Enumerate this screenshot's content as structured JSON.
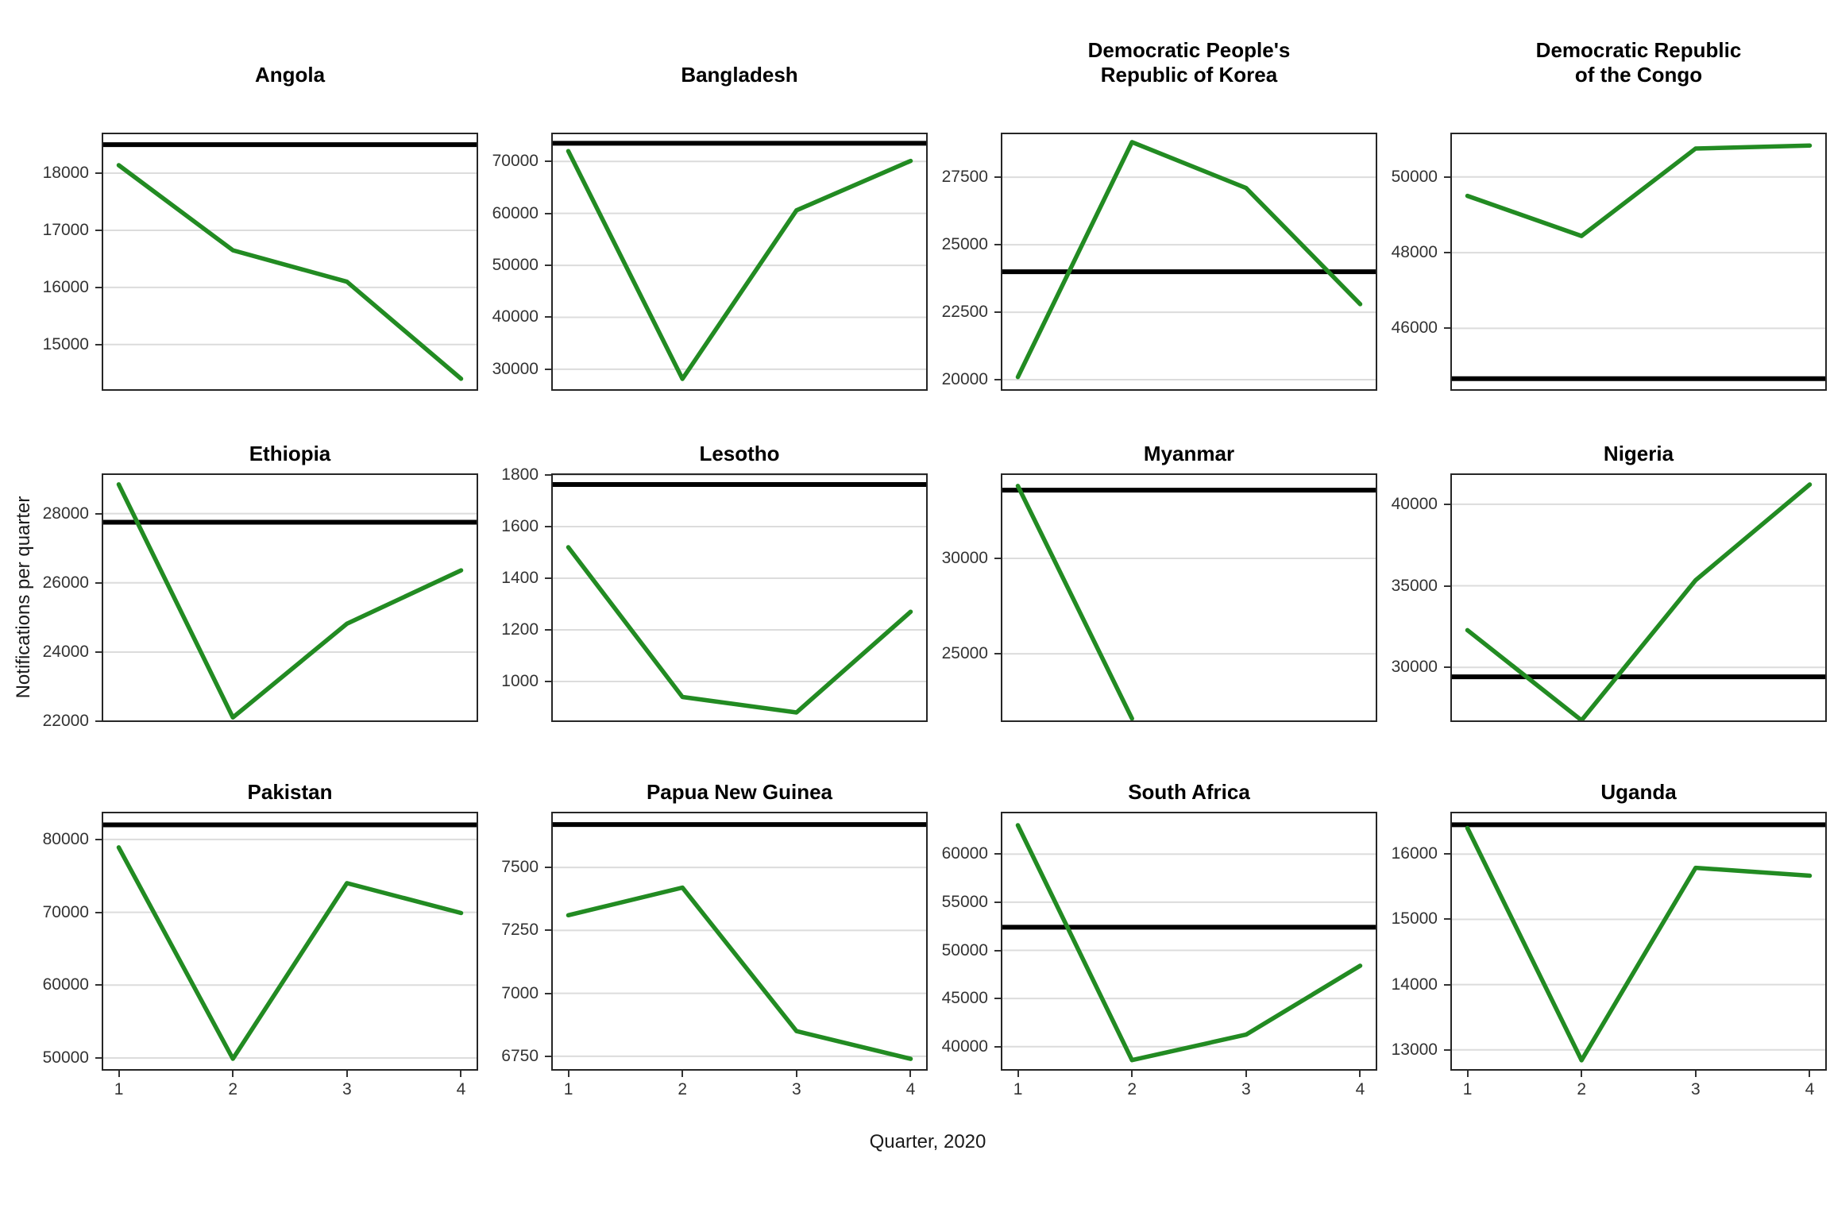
{
  "chart_data": {
    "type": "line",
    "title": "",
    "xlabel": "Quarter, 2020",
    "ylabel": "Notifications per quarter",
    "x": [
      1,
      2,
      3,
      4
    ],
    "x_ticks": [
      "1",
      "2",
      "3",
      "4"
    ],
    "xlim": [
      0.85,
      4.15
    ],
    "grid": true,
    "legend_position": "none",
    "line_color": "#228B22",
    "reference_line_color": "#000000",
    "gridline_color": "#dcdcdc",
    "facets": [
      {
        "name": "Angola",
        "values": [
          18140,
          16650,
          16100,
          14400
        ],
        "reference": 18500,
        "y_ticks": [
          15000,
          16000,
          17000,
          18000
        ],
        "ylim": [
          14190,
          18710
        ]
      },
      {
        "name": "Bangladesh",
        "values": [
          72000,
          28150,
          60600,
          70100
        ],
        "reference": 73500,
        "y_ticks": [
          30000,
          40000,
          50000,
          60000,
          70000
        ],
        "ylim": [
          25850,
          75550
        ]
      },
      {
        "name": "Democratic People's\nRepublic of Korea",
        "values": [
          20100,
          28800,
          27100,
          22800
        ],
        "reference": 24000,
        "y_ticks": [
          20000,
          22500,
          25000,
          27500
        ],
        "ylim": [
          19590,
          29150
        ]
      },
      {
        "name": "Democratic Republic\nof the Congo",
        "values": [
          49500,
          48440,
          50750,
          50830
        ],
        "reference": 44670,
        "y_ticks": [
          46000,
          48000,
          50000
        ],
        "ylim": [
          44350,
          51170
        ]
      },
      {
        "name": "Ethiopia",
        "values": [
          28840,
          22110,
          24820,
          26360
        ],
        "reference": 27750,
        "y_ticks": [
          22000,
          24000,
          26000,
          28000
        ],
        "ylim": [
          21980,
          29160
        ]
      },
      {
        "name": "Lesotho",
        "values": [
          1520,
          940,
          880,
          1270
        ],
        "reference": 1763,
        "y_ticks": [
          1000,
          1200,
          1400,
          1600,
          1800
        ],
        "ylim": [
          843,
          1806
        ]
      },
      {
        "name": "Myanmar",
        "values": [
          33800,
          21600,
          null,
          null
        ],
        "reference": 33580,
        "y_ticks": [
          25000,
          30000
        ],
        "ylim": [
          21420,
          34460
        ]
      },
      {
        "name": "Nigeria",
        "values": [
          32280,
          26750,
          35340,
          41210
        ],
        "reference": 29420,
        "y_ticks": [
          30000,
          35000,
          40000
        ],
        "ylim": [
          26650,
          41890
        ]
      },
      {
        "name": "Pakistan",
        "values": [
          78900,
          49900,
          74000,
          69900
        ],
        "reference": 82000,
        "y_ticks": [
          50000,
          60000,
          70000,
          80000
        ],
        "ylim": [
          48260,
          83800
        ]
      },
      {
        "name": "Papua New Guinea",
        "values": [
          7310,
          7420,
          6850,
          6740
        ],
        "reference": 7670,
        "y_ticks": [
          6750,
          7000,
          7250,
          7500
        ],
        "ylim": [
          6693,
          7721
        ]
      },
      {
        "name": "South Africa",
        "values": [
          63000,
          38600,
          41250,
          48400
        ],
        "reference": 52400,
        "y_ticks": [
          40000,
          45000,
          50000,
          55000,
          60000
        ],
        "ylim": [
          37500,
          64400
        ]
      },
      {
        "name": "Uganda",
        "values": [
          16400,
          12840,
          15790,
          15670
        ],
        "reference": 16450,
        "y_ticks": [
          13000,
          14000,
          15000,
          16000
        ],
        "ylim": [
          12680,
          16650
        ]
      }
    ]
  }
}
